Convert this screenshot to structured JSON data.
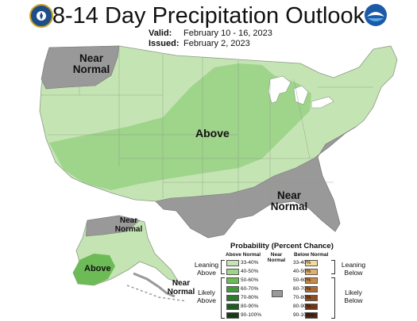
{
  "title": "8-14 Day Precipitation Outlook",
  "valid_label": "Valid:",
  "valid_value": "February 10 - 16, 2023",
  "issued_label": "Issued:",
  "issued_value": "February 2, 2023",
  "regions": {
    "nw_near_normal": "Near Normal",
    "above_central": "Above",
    "se_near_normal": "Near Normal",
    "ak_near_normal": "Near Normal",
    "ak_above": "Above",
    "aleutian_near_normal": "Near Normal"
  },
  "legend": {
    "title": "Probability (Percent Chance)",
    "above_header": "Above Normal",
    "below_header": "Below Normal",
    "near_header": "Near Normal",
    "leaning_above": "Leaning Above",
    "likely_above": "Likely Above",
    "leaning_below": "Leaning Below",
    "likely_below": "Likely Below",
    "ranges": [
      "33-40%",
      "40-50%",
      "50-60%",
      "60-70%",
      "70-80%",
      "80-90%",
      "90-100%"
    ],
    "above_colors": [
      "#c5e4b4",
      "#9fd48b",
      "#6dbb57",
      "#3f9b3a",
      "#2d7a2c",
      "#1f5c1f",
      "#123d12"
    ],
    "below_colors": [
      "#f5d99a",
      "#dfb16d",
      "#c98a48",
      "#b06a30",
      "#8f4e22",
      "#6e3818",
      "#4e2410"
    ],
    "near_color": "#999999"
  },
  "colors": {
    "above_light": "#c5e4b4",
    "above_medium": "#9fd48b",
    "above_strong": "#6dbb57",
    "near_normal": "#999999",
    "water": "#ffffff"
  }
}
